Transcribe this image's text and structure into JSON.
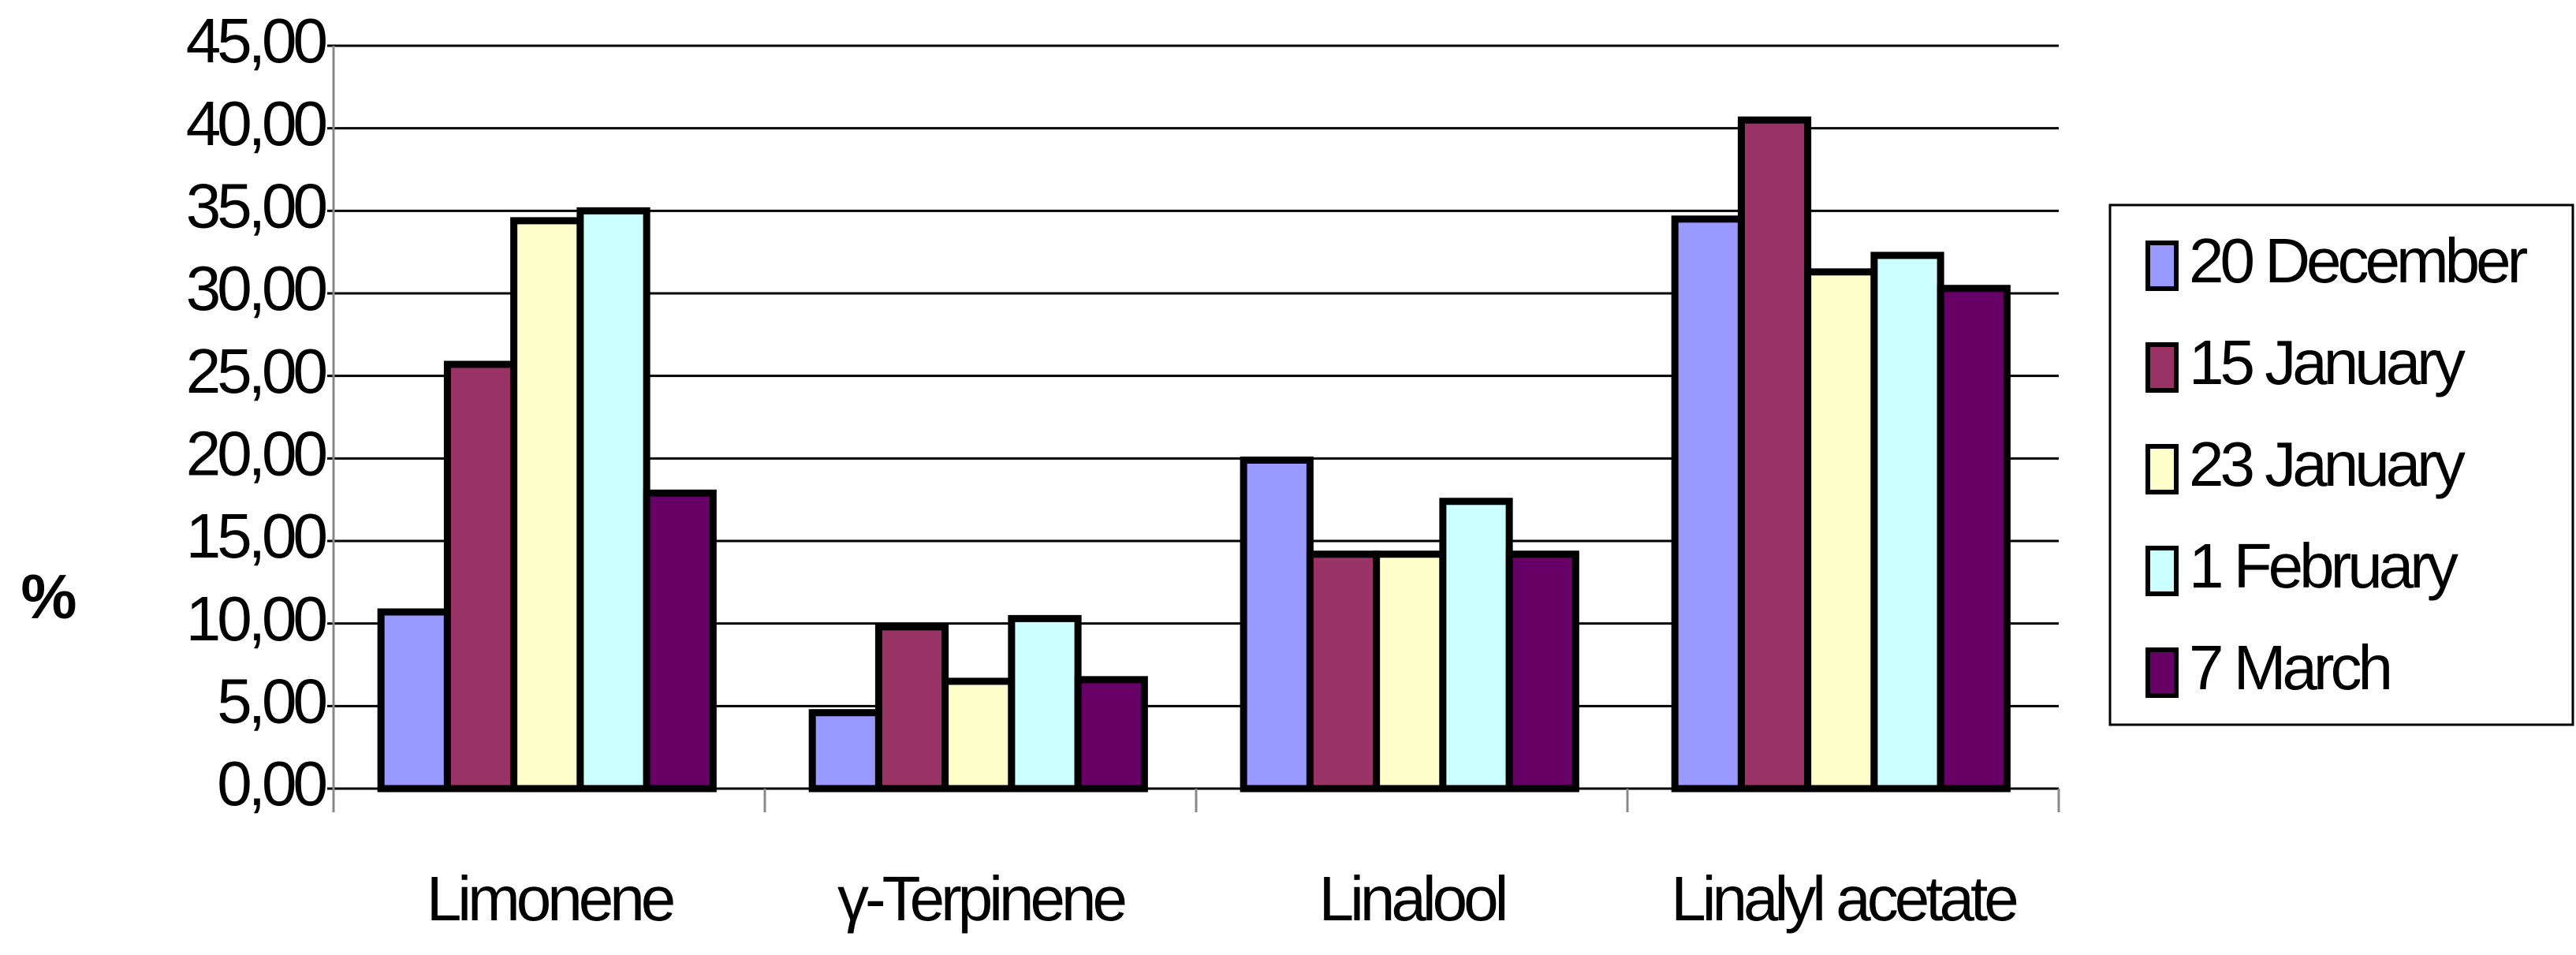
{
  "chart_data": {
    "type": "bar",
    "y_label": "%",
    "categories": [
      "Limonene",
      "γ-Terpinene",
      "Linalool",
      "Linalyl acetate"
    ],
    "series": [
      {
        "name": "20 December",
        "color": "#9999ff",
        "values": [
          10.7,
          4.6,
          19.9,
          34.5
        ]
      },
      {
        "name": "15 January",
        "color": "#993366",
        "values": [
          25.7,
          9.8,
          14.2,
          40.5
        ]
      },
      {
        "name": "23 January",
        "color": "#ffffcc",
        "values": [
          34.4,
          6.5,
          14.2,
          31.3
        ]
      },
      {
        "name": "1 February",
        "color": "#ccffff",
        "values": [
          35.0,
          10.3,
          17.4,
          32.3
        ]
      },
      {
        "name": "7 March",
        "color": "#660066",
        "values": [
          17.9,
          6.6,
          14.2,
          30.3
        ]
      }
    ],
    "ylim": [
      0,
      45
    ],
    "yticks": [
      {
        "value": 0,
        "label": "0,00"
      },
      {
        "value": 5,
        "label": "5,00"
      },
      {
        "value": 10,
        "label": "10,00"
      },
      {
        "value": 15,
        "label": "15,00"
      },
      {
        "value": 20,
        "label": "20,00"
      },
      {
        "value": 25,
        "label": "25,00"
      },
      {
        "value": 30,
        "label": "30,00"
      },
      {
        "value": 35,
        "label": "35,00"
      },
      {
        "value": 40,
        "label": "40,00"
      },
      {
        "value": 45,
        "label": "45,00"
      }
    ],
    "grid": true,
    "legend": "right"
  }
}
